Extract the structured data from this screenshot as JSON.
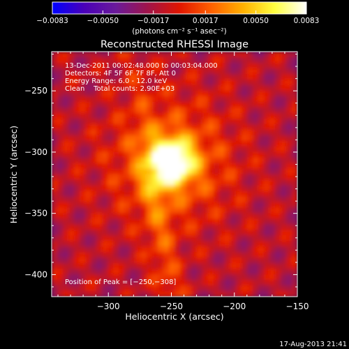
{
  "chart_data": {
    "type": "heatmap",
    "title": "Reconstructed RHESSI Image",
    "xlabel": "Heliocentric X (arcsec)",
    "ylabel": "Heliocentric Y (arcsec)",
    "xlim": [
      -345,
      -150
    ],
    "ylim": [
      -418,
      -218
    ],
    "x_ticks": [
      -300,
      -250,
      -200,
      -150
    ],
    "y_ticks": [
      -250,
      -300,
      -350,
      -400
    ],
    "x_tick_labels": [
      "−300",
      "−250",
      "−200",
      "−150"
    ],
    "y_tick_labels": [
      "−250",
      "−300",
      "−350",
      "−400"
    ],
    "colorbar": {
      "range": [
        -0.0083,
        0.0083
      ],
      "ticks": [
        -0.0083,
        -0.005,
        -0.0017,
        0.0017,
        0.005,
        0.0083
      ],
      "tick_labels": [
        "−0.0083",
        "−0.0050",
        "−0.0017",
        "0.0017",
        "0.0050",
        "0.0083"
      ],
      "unit_label": "(photons cm⁻² s⁻¹ asec⁻²)",
      "colormap": [
        "#0000ff",
        "#4a00b8",
        "#6a1a9a",
        "#a0144a",
        "#e01500",
        "#ff6000",
        "#ffb000",
        "#ffff40",
        "#ffffff"
      ]
    },
    "annotations": [
      "13-Dec-2011 00:02:48.000 to 00:03:04.000",
      "Detectors: 4F 5F 6F 7F 8F, Att 0",
      "Energy Range: 6.0 - 12.0 keV",
      "Clean    Total counts: 2.90E+03"
    ],
    "peak_label": "Position of Peak = [−250,−308]",
    "peak": {
      "x": -250,
      "y": -308
    },
    "footer_timestamp": "17-Aug-2013 21:41"
  }
}
